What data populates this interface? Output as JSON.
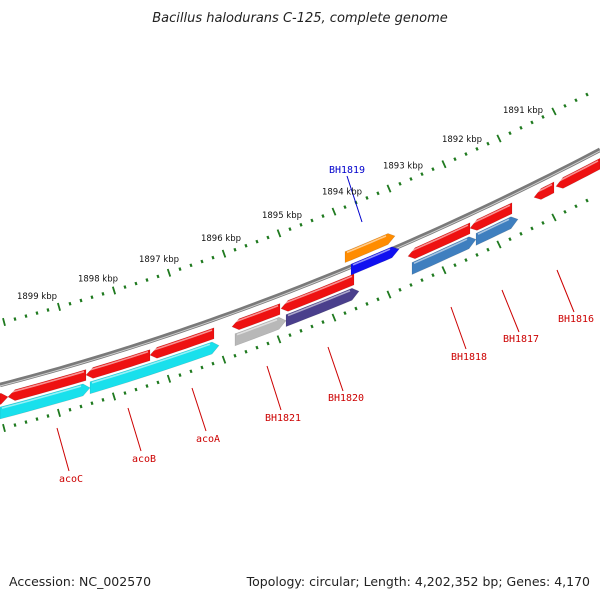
{
  "title": "Bacillus halodurans C-125, complete genome",
  "footer": {
    "accession": "Accession: NC_002570",
    "summary": "Topology: circular; Length: 4,202,352 bp; Genes: 4,170"
  },
  "colors": {
    "backbone": "#7a7a7a",
    "tick": "#1f7a1f",
    "gene_red": "#ee1111",
    "gene_cyan": "#19e0ec",
    "gene_orange": "#ff8c00",
    "gene_blue": "#1010f0",
    "gene_gray": "#b8b8b8",
    "gene_slate": "#4a3f8c",
    "gene_steel": "#3f7fbf",
    "label_red": "#cc0000",
    "label_blue": "#0000cc"
  },
  "position_labels": [
    "1891 kbp",
    "1892 kbp",
    "1893 kbp",
    "1894 kbp",
    "1895 kbp",
    "1896 kbp",
    "1897 kbp",
    "1898 kbp",
    "1899 kbp"
  ],
  "gene_labels": [
    {
      "name": "BH1819",
      "color": "blue"
    },
    {
      "name": "BH1816",
      "color": "red"
    },
    {
      "name": "BH1817",
      "color": "red"
    },
    {
      "name": "BH1818",
      "color": "red"
    },
    {
      "name": "BH1820",
      "color": "red"
    },
    {
      "name": "BH1821",
      "color": "red"
    },
    {
      "name": "acoA",
      "color": "red"
    },
    {
      "name": "acoB",
      "color": "red"
    },
    {
      "name": "acoC",
      "color": "red"
    }
  ]
}
